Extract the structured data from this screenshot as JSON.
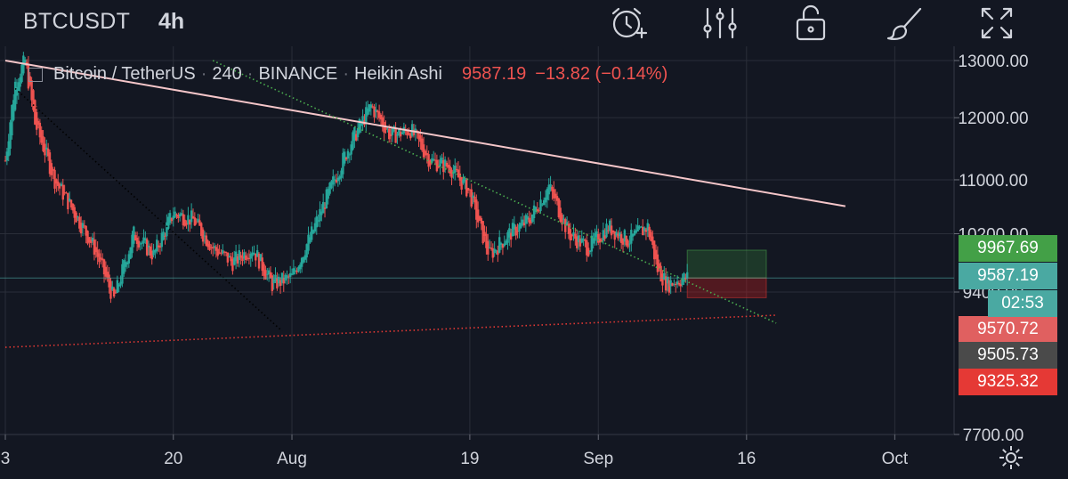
{
  "header": {
    "symbol": "BTCUSDT",
    "interval": "4h",
    "icons": [
      "alarm-add-icon",
      "indicators-icon",
      "lock-icon",
      "drawing-brush-icon",
      "fullscreen-icon"
    ]
  },
  "legend": {
    "name": "Bitcoin / TetherUS",
    "resolution": "240",
    "exchange": "BINANCE",
    "chart_style": "Heikin Ashi",
    "price": "9587.19",
    "change": "−13.82 (−0.14%)"
  },
  "colors": {
    "background": "#131722",
    "up": "#26a69a",
    "down": "#ef5350",
    "grid": "#2a2e39",
    "trendline": "#f5c6c9",
    "green_dotted": "#4caf50",
    "red_dotted": "#e53935",
    "black_dotted": "#000000"
  },
  "price_labels": [
    {
      "text": "9967.69",
      "value": 9967.69,
      "color": "#43a047"
    },
    {
      "text": "9587.19",
      "value": 9587.19,
      "color": "#4aa9a2"
    },
    {
      "text": "9570.72",
      "value": 9570.72,
      "color": "#e06060"
    },
    {
      "text": "9505.73",
      "value": 9505.73,
      "color": "#4a4a4a"
    },
    {
      "text": "9325.32",
      "value": 9325.32,
      "color": "#e53935"
    }
  ],
  "countdown": "02:53",
  "chart_data": {
    "type": "candlestick",
    "style": "Heikin Ashi",
    "y_scale": "log",
    "y_ticks": [
      {
        "label": "13000.00",
        "value": 13000
      },
      {
        "label": "12000.00",
        "value": 12000
      },
      {
        "label": "11000.00",
        "value": 11000
      },
      {
        "label": "10200.00",
        "value": 10200
      },
      {
        "label": "9400.00",
        "value": 9400
      },
      {
        "label": "7700.00",
        "value": 7700
      }
    ],
    "x_ticks": [
      {
        "label": "3",
        "date": "2020-07-03"
      },
      {
        "label": "20",
        "date": "2020-07-20"
      },
      {
        "label": "Aug",
        "date": "2020-08-01"
      },
      {
        "label": "19",
        "date": "2020-08-19"
      },
      {
        "label": "Sep",
        "date": "2020-09-01"
      },
      {
        "label": "16",
        "date": "2020-09-16"
      },
      {
        "label": "Oct",
        "date": "2020-10-01"
      }
    ],
    "x_range": [
      "2020-07-03",
      "2020-10-07"
    ],
    "path_points": [
      {
        "date": "2020-07-03",
        "price": 11300
      },
      {
        "date": "2020-07-04",
        "price": 12600
      },
      {
        "date": "2020-07-05",
        "price": 13000
      },
      {
        "date": "2020-07-06",
        "price": 11900
      },
      {
        "date": "2020-07-08",
        "price": 11000
      },
      {
        "date": "2020-07-10",
        "price": 10500
      },
      {
        "date": "2020-07-12",
        "price": 10000
      },
      {
        "date": "2020-07-14",
        "price": 9300
      },
      {
        "date": "2020-07-16",
        "price": 10200
      },
      {
        "date": "2020-07-18",
        "price": 9900
      },
      {
        "date": "2020-07-20",
        "price": 10500
      },
      {
        "date": "2020-07-22",
        "price": 10400
      },
      {
        "date": "2020-07-24",
        "price": 10000
      },
      {
        "date": "2020-07-26",
        "price": 9800
      },
      {
        "date": "2020-07-28",
        "price": 10000
      },
      {
        "date": "2020-07-30",
        "price": 9500
      },
      {
        "date": "2020-08-01",
        "price": 9600
      },
      {
        "date": "2020-08-03",
        "price": 10200
      },
      {
        "date": "2020-08-05",
        "price": 10900
      },
      {
        "date": "2020-08-07",
        "price": 11600
      },
      {
        "date": "2020-08-09",
        "price": 12200
      },
      {
        "date": "2020-08-11",
        "price": 11700
      },
      {
        "date": "2020-08-13",
        "price": 11800
      },
      {
        "date": "2020-08-15",
        "price": 11300
      },
      {
        "date": "2020-08-17",
        "price": 11200
      },
      {
        "date": "2020-08-19",
        "price": 10800
      },
      {
        "date": "2020-08-20",
        "price": 10300
      },
      {
        "date": "2020-08-21",
        "price": 9900
      },
      {
        "date": "2020-08-23",
        "price": 10200
      },
      {
        "date": "2020-08-25",
        "price": 10400
      },
      {
        "date": "2020-08-27",
        "price": 10900
      },
      {
        "date": "2020-08-29",
        "price": 10200
      },
      {
        "date": "2020-08-31",
        "price": 10000
      },
      {
        "date": "2020-09-02",
        "price": 10300
      },
      {
        "date": "2020-09-04",
        "price": 10100
      },
      {
        "date": "2020-09-06",
        "price": 10300
      },
      {
        "date": "2020-09-07",
        "price": 9700
      },
      {
        "date": "2020-09-08",
        "price": 9500
      },
      {
        "date": "2020-09-09",
        "price": 9560
      },
      {
        "date": "2020-09-10",
        "price": 9587
      }
    ],
    "trendlines": [
      {
        "name": "pink-trendline",
        "style": "solid",
        "from": {
          "date": "2020-07-03",
          "price": 13000
        },
        "to": {
          "date": "2020-09-26",
          "price": 10600
        }
      },
      {
        "name": "green-dotted-line",
        "style": "dotted",
        "from": {
          "date": "2020-07-24",
          "price": 13000
        },
        "to": {
          "date": "2020-09-19",
          "price": 9000
        }
      },
      {
        "name": "black-dotted-line",
        "style": "dotted",
        "from": {
          "date": "2020-07-04",
          "price": 12500
        },
        "to": {
          "date": "2020-07-31",
          "price": 8900
        }
      },
      {
        "name": "red-dotted-line",
        "style": "dotted",
        "from": {
          "date": "2020-07-03",
          "price": 8700
        },
        "to": {
          "date": "2020-09-19",
          "price": 9100
        }
      }
    ],
    "position": {
      "start": "2020-09-10",
      "end": "2020-09-18",
      "entry": 9587.19,
      "target": 9967.69,
      "stop": 9325.32
    }
  }
}
